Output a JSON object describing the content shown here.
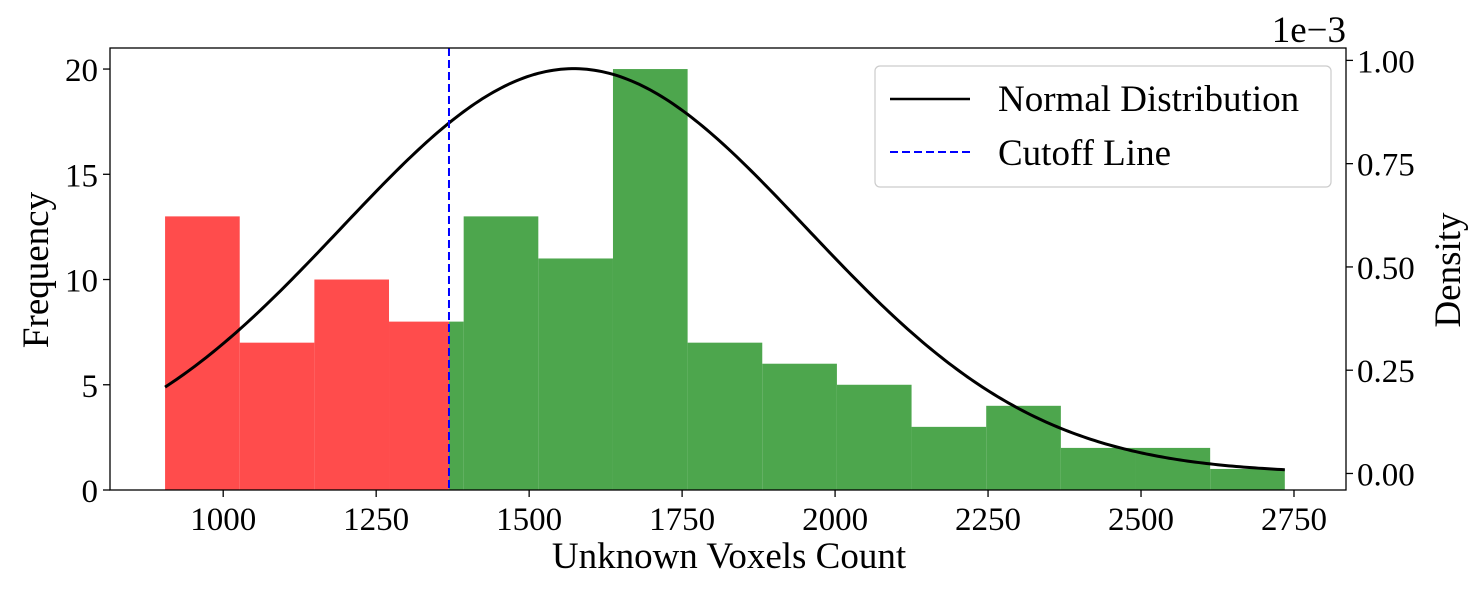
{
  "chart_data": {
    "type": "bar",
    "xlabel": "Unknown Voxels Count",
    "ylabel": "Frequency",
    "y2label": "Density",
    "y2_offset_text": "1e−3",
    "xlim": [
      815,
      2835
    ],
    "ylim": [
      0,
      21
    ],
    "y2lim": [
      -0.04,
      1.03
    ],
    "x_ticks": [
      1000,
      1250,
      1500,
      1750,
      2000,
      2250,
      2500,
      2750
    ],
    "y_ticks": [
      0,
      5,
      10,
      15,
      20
    ],
    "y2_ticks": [
      "0.00",
      "0.25",
      "0.50",
      "0.75",
      "1.00"
    ],
    "y2_tick_values": [
      0.0,
      0.25,
      0.5,
      0.75,
      1.0
    ],
    "bins": [
      {
        "x0": 905,
        "x1": 1027,
        "count": 13,
        "color": "#ff4c4c"
      },
      {
        "x0": 1027,
        "x1": 1149,
        "count": 7,
        "color": "#ff4c4c"
      },
      {
        "x0": 1149,
        "x1": 1271,
        "count": 10,
        "color": "#ff4c4c"
      },
      {
        "x0": 1271,
        "x1": 1369,
        "count": 8,
        "color": "#ff4c4c"
      },
      {
        "x0": 1369,
        "x1": 1393,
        "count": 8,
        "color": "#4da64d"
      },
      {
        "x0": 1393,
        "x1": 1515,
        "count": 13,
        "color": "#4da64d"
      },
      {
        "x0": 1515,
        "x1": 1637,
        "count": 11,
        "color": "#4da64d"
      },
      {
        "x0": 1637,
        "x1": 1759,
        "count": 20,
        "color": "#4da64d"
      },
      {
        "x0": 1759,
        "x1": 1881,
        "count": 7,
        "color": "#4da64d"
      },
      {
        "x0": 1881,
        "x1": 2003,
        "count": 6,
        "color": "#4da64d"
      },
      {
        "x0": 2003,
        "x1": 2125,
        "count": 5,
        "color": "#4da64d"
      },
      {
        "x0": 2125,
        "x1": 2247,
        "count": 3,
        "color": "#4da64d"
      },
      {
        "x0": 2247,
        "x1": 2369,
        "count": 4,
        "color": "#4da64d"
      },
      {
        "x0": 2369,
        "x1": 2491,
        "count": 2,
        "color": "#4da64d"
      },
      {
        "x0": 2491,
        "x1": 2613,
        "count": 2,
        "color": "#4da64d"
      },
      {
        "x0": 2613,
        "x1": 2735,
        "count": 1,
        "color": "#4da64d"
      }
    ],
    "normal_curve": {
      "name": "Normal Distribution",
      "mean": 1573,
      "std": 380,
      "peak_density": 0.98,
      "x_range": [
        905,
        2735
      ],
      "color": "#000000"
    },
    "cutoff": {
      "name": "Cutoff Line",
      "x": 1369,
      "color": "#0000ff"
    },
    "legend": {
      "placement": "top-right",
      "entries": [
        "Normal Distribution",
        "Cutoff Line"
      ]
    },
    "grid": false
  }
}
